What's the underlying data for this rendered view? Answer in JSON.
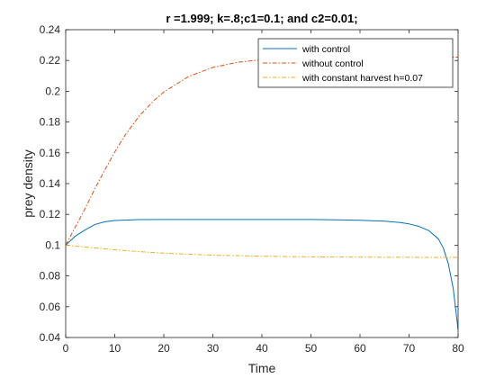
{
  "chart_data": {
    "type": "line",
    "title": "r =1.999; k=.8;c1=0.1;  and c2=0.01;",
    "xlabel": "Time",
    "ylabel": "prey density",
    "xlim": [
      0,
      80
    ],
    "ylim": [
      0.04,
      0.24
    ],
    "xticks": [
      0,
      10,
      20,
      30,
      40,
      50,
      60,
      70,
      80
    ],
    "xtick_labels": [
      "0",
      "10",
      "20",
      "30",
      "40",
      "50",
      "60",
      "70",
      "80"
    ],
    "yticks": [
      0.04,
      0.06,
      0.08,
      0.1,
      0.12,
      0.14,
      0.16,
      0.18,
      0.2,
      0.22,
      0.24
    ],
    "ytick_labels": [
      "0.04",
      "0.06",
      "0.08",
      "0.1",
      "0.12",
      "0.14",
      "0.16",
      "0.18",
      "0.2",
      "0.22",
      "0.24"
    ],
    "grid": false,
    "legend_position": "top-right",
    "series": [
      {
        "name": "with control",
        "color": "#0072BD",
        "style": "solid",
        "x": [
          0,
          2,
          4,
          6,
          8,
          10,
          15,
          20,
          30,
          40,
          50,
          60,
          65,
          68,
          70,
          72,
          74,
          76,
          77,
          78,
          79,
          80
        ],
        "y": [
          0.1,
          0.106,
          0.11,
          0.1135,
          0.1152,
          0.116,
          0.1166,
          0.1167,
          0.1167,
          0.1167,
          0.1167,
          0.1162,
          0.1156,
          0.1148,
          0.1138,
          0.1122,
          0.1095,
          0.104,
          0.098,
          0.088,
          0.072,
          0.045
        ]
      },
      {
        "name": "without control",
        "color": "#D95319",
        "style": "dashdot",
        "x": [
          0,
          2,
          4,
          6,
          8,
          10,
          12,
          15,
          18,
          20,
          25,
          30,
          35,
          40,
          45,
          50,
          55,
          60,
          70,
          80
        ],
        "y": [
          0.1,
          0.112,
          0.124,
          0.137,
          0.149,
          0.1605,
          0.171,
          0.184,
          0.194,
          0.1995,
          0.2095,
          0.2155,
          0.2188,
          0.2205,
          0.2214,
          0.2219,
          0.2221,
          0.2222,
          0.2222,
          0.2222
        ]
      },
      {
        "name": "with constant harvest h=0.07",
        "color": "#EDB120",
        "style": "dashdot",
        "x": [
          0,
          5,
          10,
          15,
          20,
          30,
          40,
          50,
          60,
          70,
          80
        ],
        "y": [
          0.1,
          0.0985,
          0.097,
          0.0958,
          0.0948,
          0.0935,
          0.0928,
          0.0924,
          0.0922,
          0.0921,
          0.092
        ]
      }
    ]
  }
}
